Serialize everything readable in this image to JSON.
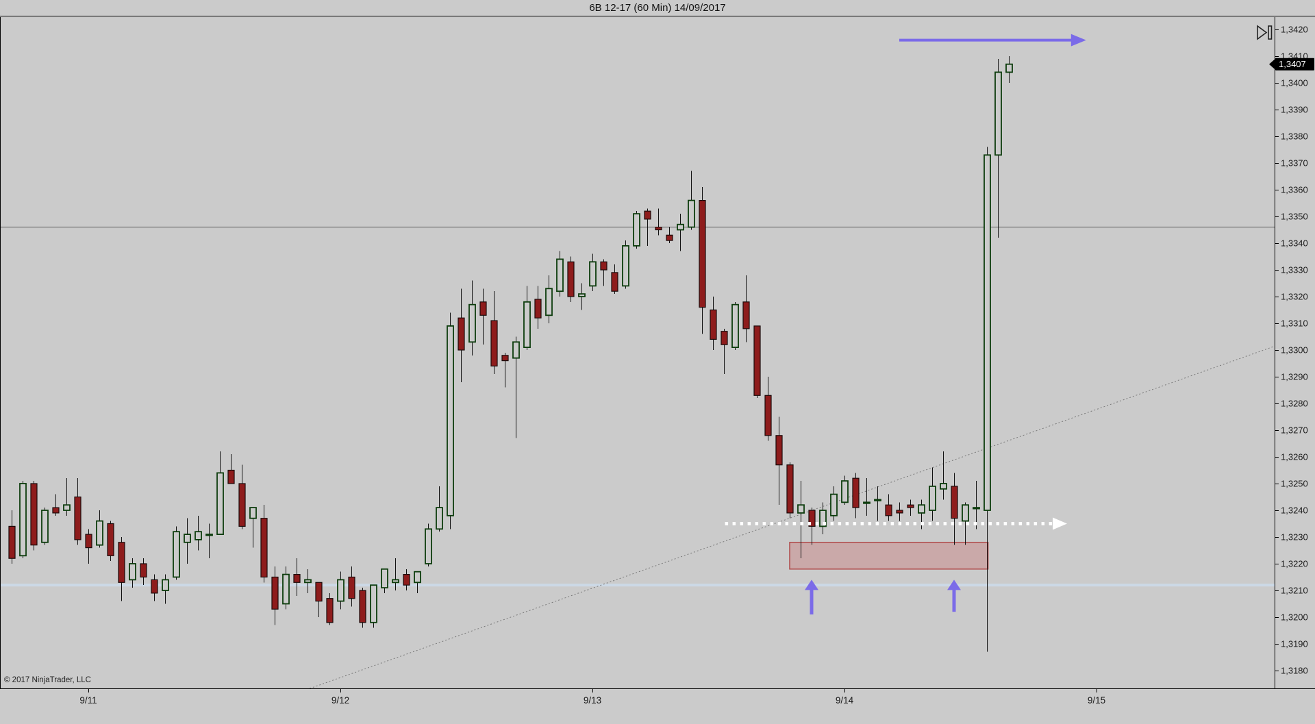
{
  "window": {
    "title": "6B 12-17 (60 Min)  14/09/2017"
  },
  "footer": {
    "copyright": "© 2017 NinjaTrader, LLC"
  },
  "toolbar": {
    "go_to_end_icon": "skip-to-end"
  },
  "price_axis": {
    "max": 1.342,
    "min": 1.318,
    "step": 0.001,
    "labels": [
      "1,3420",
      "1,3410",
      "1,3400",
      "1,3390",
      "1,3380",
      "1,3370",
      "1,3360",
      "1,3350",
      "1,3340",
      "1,3330",
      "1,3320",
      "1,3310",
      "1,3300",
      "1,3290",
      "1,3280",
      "1,3270",
      "1,3260",
      "1,3250",
      "1,3240",
      "1,3230",
      "1,3220",
      "1,3210",
      "1,3200",
      "1,3190",
      "1,3180"
    ],
    "current_price": 1.3407,
    "current_price_label": "1,3407"
  },
  "time_axis": {
    "labels": [
      "9/11",
      "9/12",
      "9/13",
      "9/14",
      "9/15"
    ],
    "tick_indices": [
      7,
      30,
      53,
      76,
      99
    ]
  },
  "chart_data": {
    "type": "candlestick",
    "title": "6B 12-17 (60 Min)  14/09/2017",
    "instrument": "6B 12-17",
    "interval": "60 Min",
    "session_date": "14/09/2017",
    "ylim": [
      1.31733,
      1.34246
    ],
    "grid": "off",
    "legend": "none",
    "candles_ohlc": [
      [
        1.3234,
        1.324,
        1.322,
        1.3222
      ],
      [
        1.3223,
        1.3251,
        1.3222,
        1.325
      ],
      [
        1.325,
        1.3251,
        1.3225,
        1.3227
      ],
      [
        1.3228,
        1.3241,
        1.3227,
        1.324
      ],
      [
        1.3241,
        1.3246,
        1.3238,
        1.3239
      ],
      [
        1.324,
        1.3252,
        1.3238,
        1.3242
      ],
      [
        1.3245,
        1.3252,
        1.3227,
        1.3229
      ],
      [
        1.3231,
        1.3233,
        1.322,
        1.3226
      ],
      [
        1.3227,
        1.324,
        1.3226,
        1.3236
      ],
      [
        1.3235,
        1.3236,
        1.3221,
        1.3223
      ],
      [
        1.3228,
        1.323,
        1.3206,
        1.3213
      ],
      [
        1.3214,
        1.3222,
        1.3211,
        1.322
      ],
      [
        1.322,
        1.3222,
        1.3212,
        1.3215
      ],
      [
        1.3214,
        1.3216,
        1.3206,
        1.3209
      ],
      [
        1.321,
        1.3216,
        1.3205,
        1.3214
      ],
      [
        1.3215,
        1.3234,
        1.3214,
        1.3232
      ],
      [
        1.3228,
        1.3237,
        1.322,
        1.3231
      ],
      [
        1.3229,
        1.3238,
        1.3225,
        1.3232
      ],
      [
        1.3231,
        1.3235,
        1.3222,
        1.3231
      ],
      [
        1.3231,
        1.3262,
        1.3231,
        1.3254
      ],
      [
        1.3255,
        1.3261,
        1.325,
        1.325
      ],
      [
        1.325,
        1.3257,
        1.3233,
        1.3234
      ],
      [
        1.3237,
        1.3241,
        1.3226,
        1.3241
      ],
      [
        1.3237,
        1.3242,
        1.3213,
        1.3215
      ],
      [
        1.3215,
        1.3219,
        1.3197,
        1.3203
      ],
      [
        1.3205,
        1.3219,
        1.3203,
        1.3216
      ],
      [
        1.3216,
        1.3222,
        1.3208,
        1.3213
      ],
      [
        1.3213,
        1.3218,
        1.3209,
        1.3214
      ],
      [
        1.3213,
        1.3213,
        1.32,
        1.3206
      ],
      [
        1.3207,
        1.3209,
        1.3197,
        1.3198
      ],
      [
        1.3206,
        1.3217,
        1.3203,
        1.3214
      ],
      [
        1.3215,
        1.3219,
        1.3204,
        1.3207
      ],
      [
        1.321,
        1.3211,
        1.3196,
        1.3198
      ],
      [
        1.3198,
        1.3212,
        1.3196,
        1.3212
      ],
      [
        1.3211,
        1.3218,
        1.3209,
        1.3218
      ],
      [
        1.3213,
        1.3222,
        1.321,
        1.3214
      ],
      [
        1.3216,
        1.3218,
        1.321,
        1.3212
      ],
      [
        1.3213,
        1.3217,
        1.3209,
        1.3217
      ],
      [
        1.322,
        1.3235,
        1.3219,
        1.3233
      ],
      [
        1.3233,
        1.3249,
        1.3232,
        1.3241
      ],
      [
        1.3238,
        1.3314,
        1.3233,
        1.3309
      ],
      [
        1.3312,
        1.3323,
        1.3288,
        1.33
      ],
      [
        1.3303,
        1.3326,
        1.3298,
        1.3317
      ],
      [
        1.3318,
        1.3323,
        1.3302,
        1.3313
      ],
      [
        1.3311,
        1.3322,
        1.3291,
        1.3294
      ],
      [
        1.3298,
        1.3299,
        1.3286,
        1.3296
      ],
      [
        1.3297,
        1.3305,
        1.3267,
        1.3303
      ],
      [
        1.3301,
        1.3324,
        1.33,
        1.3318
      ],
      [
        1.3319,
        1.3324,
        1.3308,
        1.3312
      ],
      [
        1.3313,
        1.3328,
        1.331,
        1.3323
      ],
      [
        1.3322,
        1.3337,
        1.332,
        1.3334
      ],
      [
        1.3333,
        1.3335,
        1.3318,
        1.332
      ],
      [
        1.332,
        1.3325,
        1.3315,
        1.3321
      ],
      [
        1.3324,
        1.3336,
        1.3322,
        1.3333
      ],
      [
        1.3333,
        1.3334,
        1.3324,
        1.333
      ],
      [
        1.3329,
        1.3332,
        1.3321,
        1.3322
      ],
      [
        1.3324,
        1.3341,
        1.3323,
        1.3339
      ],
      [
        1.3339,
        1.3352,
        1.3338,
        1.3351
      ],
      [
        1.3352,
        1.3353,
        1.3339,
        1.3349
      ],
      [
        1.3346,
        1.3353,
        1.3343,
        1.3345
      ],
      [
        1.3343,
        1.3346,
        1.334,
        1.3341
      ],
      [
        1.3345,
        1.3351,
        1.3337,
        1.3347
      ],
      [
        1.3346,
        1.3367,
        1.3345,
        1.3356
      ],
      [
        1.3356,
        1.3361,
        1.3306,
        1.3316
      ],
      [
        1.3315,
        1.332,
        1.33,
        1.3304
      ],
      [
        1.3307,
        1.3308,
        1.3291,
        1.3302
      ],
      [
        1.3301,
        1.3318,
        1.33,
        1.3317
      ],
      [
        1.3318,
        1.3328,
        1.3303,
        1.3308
      ],
      [
        1.3309,
        1.3309,
        1.3282,
        1.3283
      ],
      [
        1.3283,
        1.329,
        1.3266,
        1.3268
      ],
      [
        1.3268,
        1.3275,
        1.3242,
        1.3257
      ],
      [
        1.3257,
        1.3258,
        1.3237,
        1.3239
      ],
      [
        1.3239,
        1.3251,
        1.3222,
        1.3242
      ],
      [
        1.324,
        1.3241,
        1.3227,
        1.3234
      ],
      [
        1.3234,
        1.3243,
        1.3231,
        1.324
      ],
      [
        1.3238,
        1.3249,
        1.3236,
        1.3246
      ],
      [
        1.3243,
        1.3253,
        1.3242,
        1.3251
      ],
      [
        1.3252,
        1.3254,
        1.3237,
        1.3241
      ],
      [
        1.3243,
        1.3252,
        1.3238,
        1.3243
      ],
      [
        1.3244,
        1.3249,
        1.3236,
        1.3244
      ],
      [
        1.3242,
        1.3246,
        1.3236,
        1.3238
      ],
      [
        1.324,
        1.3243,
        1.3236,
        1.3239
      ],
      [
        1.3242,
        1.3244,
        1.3238,
        1.3241
      ],
      [
        1.3239,
        1.3244,
        1.3233,
        1.3242
      ],
      [
        1.324,
        1.3256,
        1.3236,
        1.3249
      ],
      [
        1.3248,
        1.3262,
        1.3244,
        1.325
      ],
      [
        1.3249,
        1.3254,
        1.3227,
        1.3237
      ],
      [
        1.3236,
        1.3243,
        1.3227,
        1.3242
      ],
      [
        1.3241,
        1.3251,
        1.3233,
        1.3241
      ],
      [
        1.324,
        1.3376,
        1.3187,
        1.3373
      ],
      [
        1.3373,
        1.3409,
        1.3342,
        1.3404
      ],
      [
        1.3404,
        1.341,
        1.34,
        1.3407
      ]
    ],
    "annotations": {
      "level_line": {
        "price": 1.3346
      },
      "support_band": {
        "price": 1.3212
      },
      "trend_line": {
        "p1": {
          "index": 27.2,
          "price": 1.31733
        },
        "p2": {
          "index": 115.3,
          "price": 1.33015
        }
      },
      "demand_zone": {
        "index_start": 71.0,
        "index_end": 89.1,
        "price_top": 1.3228,
        "price_bottom": 1.3218
      },
      "dotted_arrow": {
        "price": 1.3235,
        "index_start": 65.1,
        "index_end": 96.0
      },
      "breakout_arrow": {
        "price": 1.3416,
        "index_start": 81.0,
        "index_end": 97.8
      },
      "up_arrows": [
        {
          "index": 73.0,
          "price_tip": 1.3214,
          "price_tail": 1.3201
        },
        {
          "index": 86.0,
          "price_tip": 1.3214,
          "price_tail": 1.3202
        }
      ]
    },
    "colors": {
      "background": "#cbcbcb",
      "up_candle_border": "#0c3c0c",
      "down_candle_fill": "#8e1c1c",
      "down_candle_border": "#1b0b0b",
      "wick": "#111111",
      "axis_line": "#000000",
      "axis_text": "#1a1a1a",
      "level_line": "#555555",
      "support_band": "#ccd9e6",
      "trend_line": "#787878",
      "zone_fill": "#c96a6a",
      "zone_border": "#b04a4a",
      "dotted_arrow": "#ffffff",
      "annotation_purple": "#7b6be8",
      "marker_bg": "#000000",
      "marker_text": "#ffffff"
    }
  }
}
